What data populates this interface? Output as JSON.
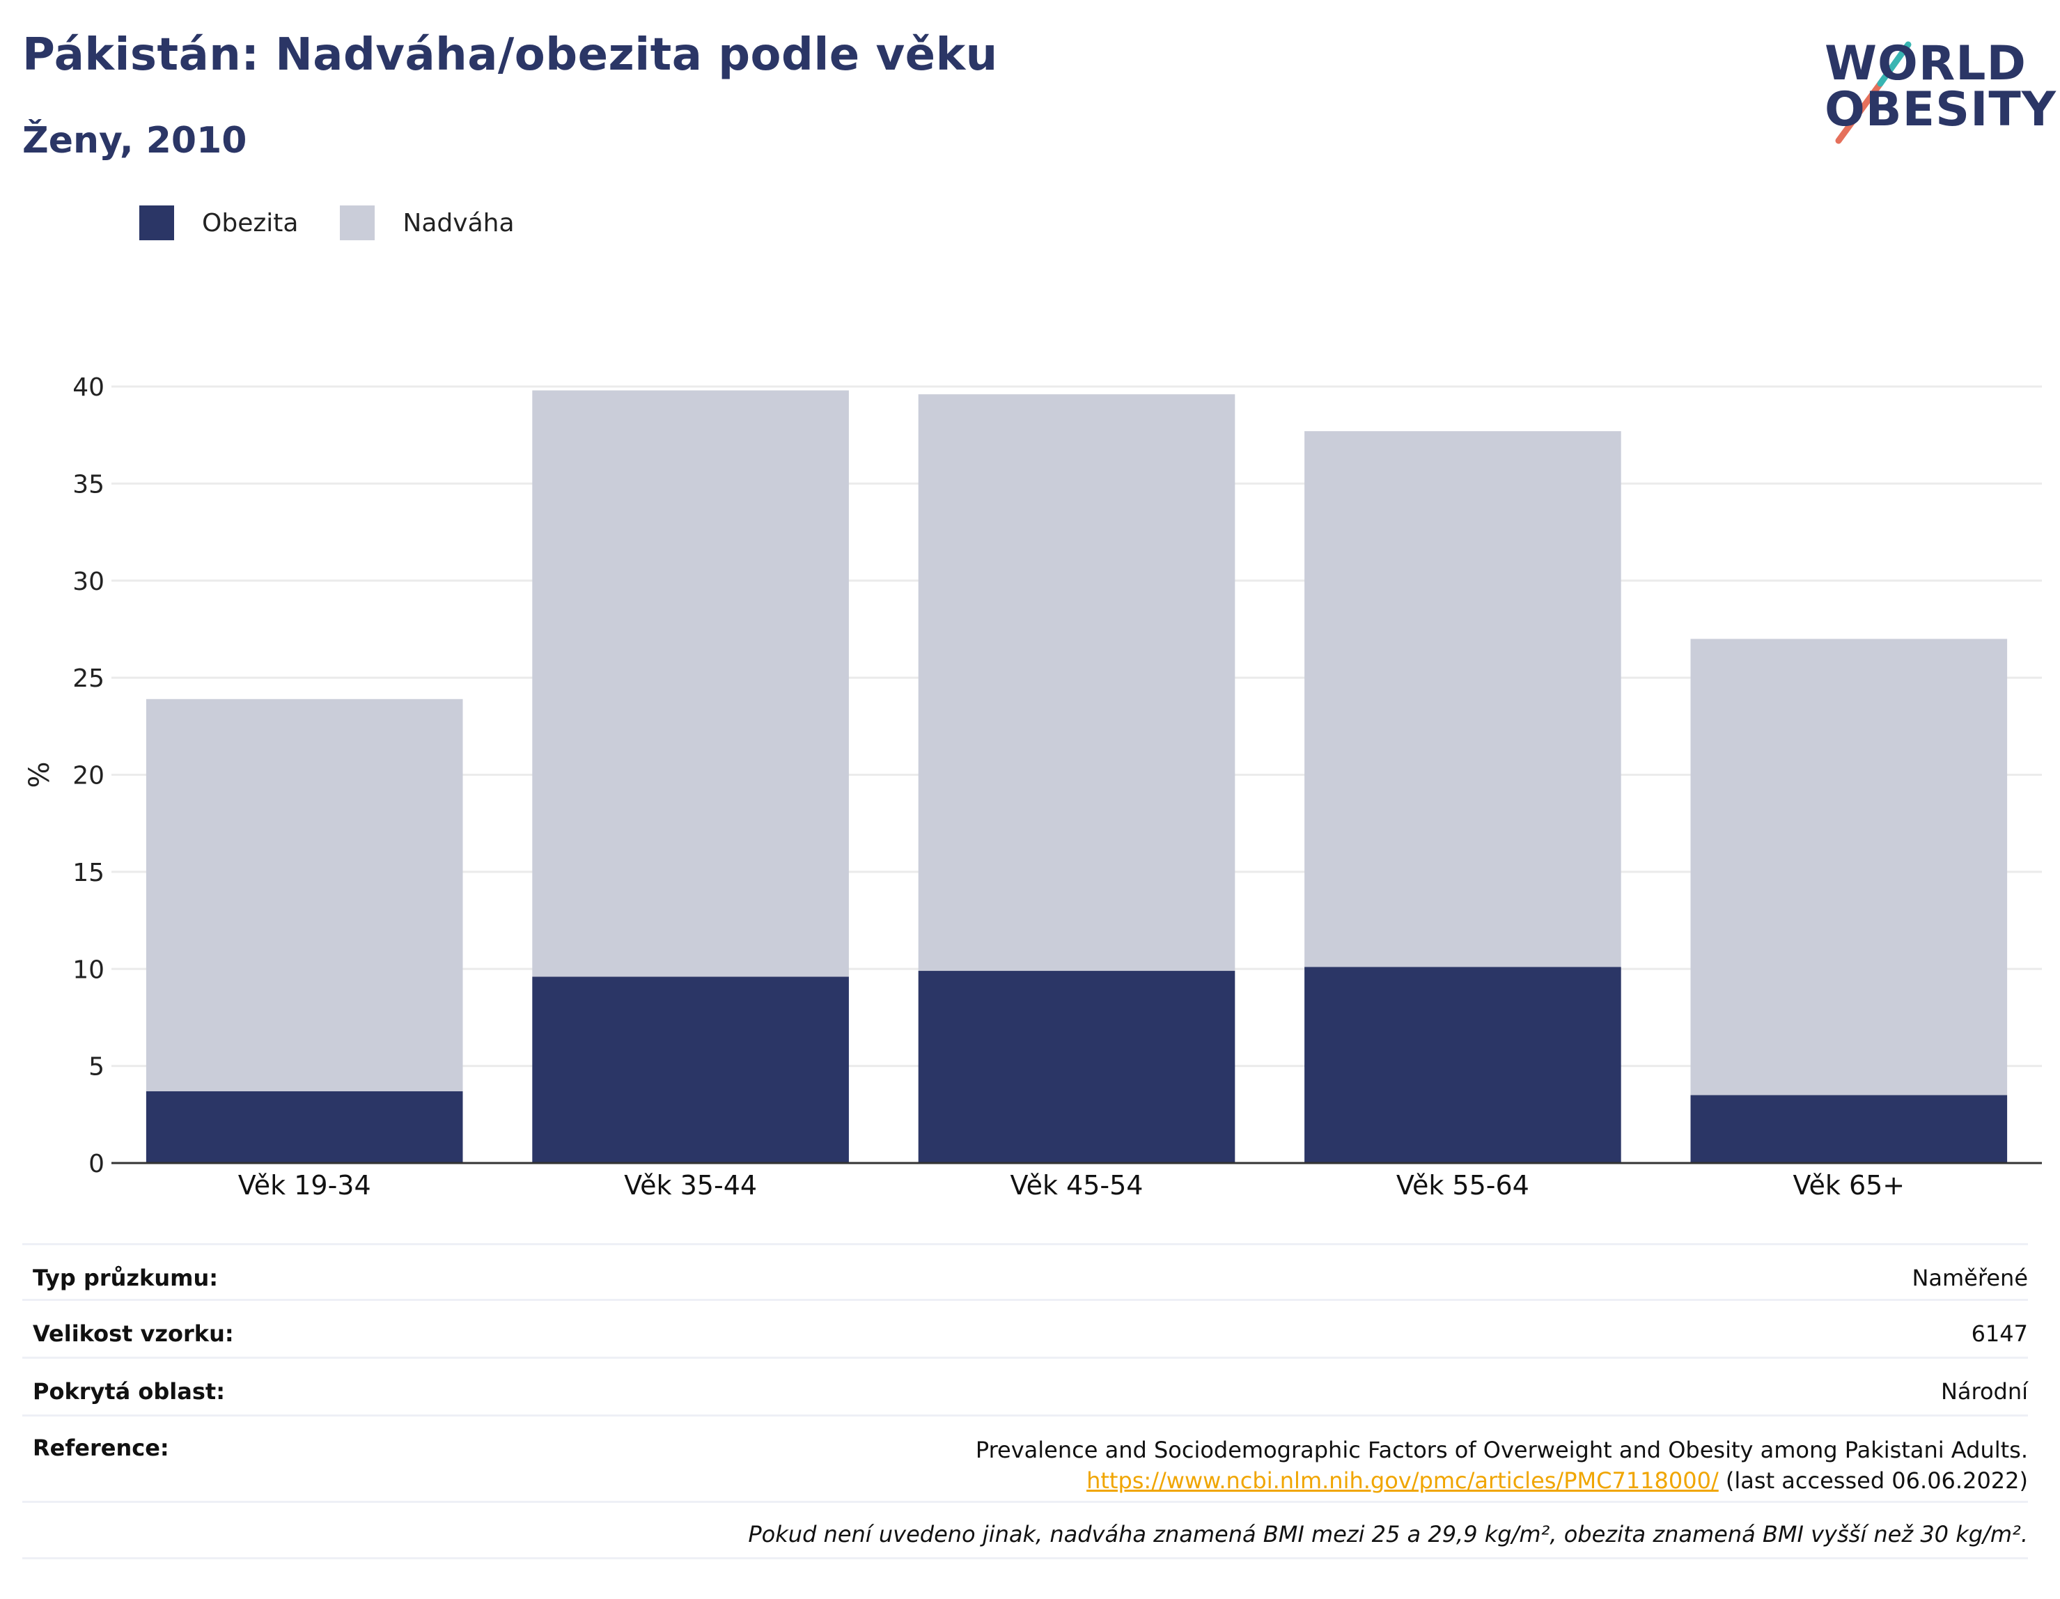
{
  "title": "Pákistán: Nadváha/obezita podle věku",
  "subtitle": "Ženy, 2010",
  "logo": {
    "line1": "WORLD",
    "line2": "OBESITY"
  },
  "colors": {
    "obesity": "#2b3666",
    "overweight": "#cacdd9",
    "title": "#2b3666",
    "link": "#f0a500",
    "grid": "#ebebeb"
  },
  "legend": [
    {
      "label": "Obezita",
      "color": "#2b3666"
    },
    {
      "label": "Nadváha",
      "color": "#cacdd9"
    }
  ],
  "chart_data": {
    "type": "bar",
    "stacked": true,
    "categories": [
      "Věk 19-34",
      "Věk 35-44",
      "Věk 45-54",
      "Věk 55-64",
      "Věk 65+"
    ],
    "series": [
      {
        "name": "Obezita",
        "values": [
          3.7,
          9.6,
          9.9,
          10.1,
          3.5
        ]
      },
      {
        "name": "Nadváha",
        "values": [
          20.2,
          30.2,
          29.7,
          27.6,
          23.5
        ]
      }
    ],
    "ylabel": "%",
    "xlabel": "",
    "ylim": [
      0,
      40
    ],
    "yticks": [
      0,
      5,
      10,
      15,
      20,
      25,
      30,
      35,
      40
    ],
    "grid": true,
    "legend_position": "top-left"
  },
  "meta": {
    "survey_type_label": "Typ průzkumu:",
    "survey_type_value": "Naměřené",
    "sample_size_label": "Velikost vzorku:",
    "sample_size_value": "6147",
    "area_label": "Pokrytá oblast:",
    "area_value": "Národní",
    "reference_label": "Reference:",
    "reference_text": "Prevalence and Sociodemographic Factors of Overweight and Obesity among Pakistani Adults.",
    "reference_url": "https://www.ncbi.nlm.nih.gov/pmc/articles/PMC7118000/",
    "reference_accessed": "(last accessed 06.06.2022)",
    "note": "Pokud není uvedeno jinak, nadváha znamená BMI mezi 25 a 29,9 kg/m², obezita znamená BMI vyšší než 30 kg/m²."
  }
}
